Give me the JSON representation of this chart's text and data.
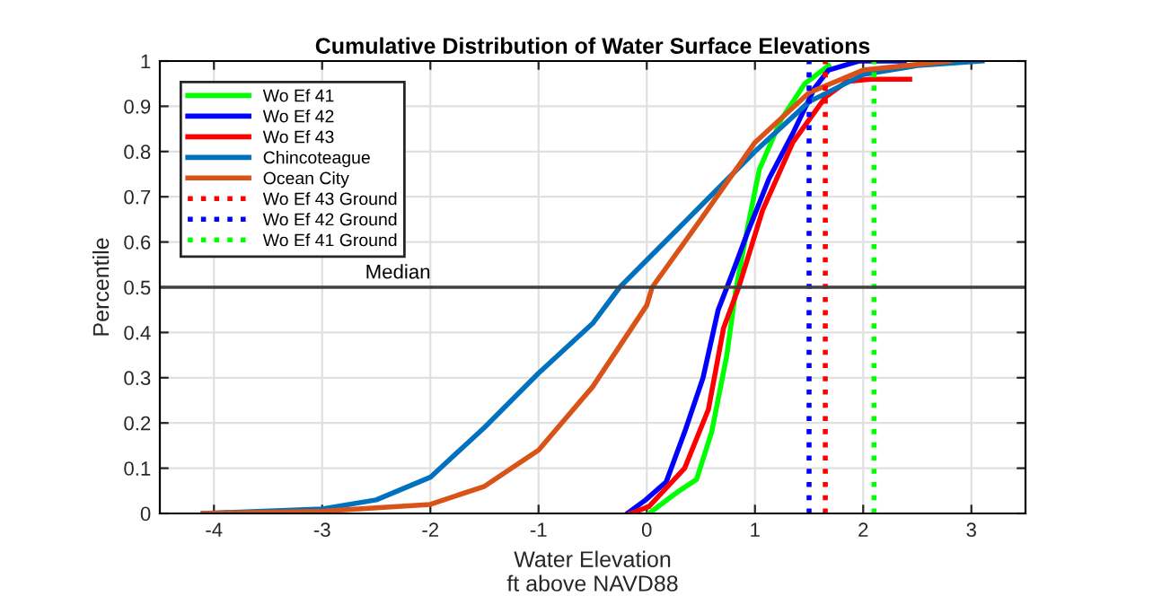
{
  "chart_data": {
    "type": "line",
    "title": "Cumulative Distribution of Water Surface Elevations",
    "xlabel": "Water Elevation\nft above NAVD88",
    "ylabel": "Percentile",
    "xlim": [
      -4.5,
      3.5
    ],
    "ylim": [
      0,
      1
    ],
    "xticks": [
      -4,
      -3,
      -2,
      -1,
      0,
      1,
      2,
      3
    ],
    "yticks": [
      0,
      0.1,
      0.2,
      0.3,
      0.4,
      0.5,
      0.6,
      0.7,
      0.8,
      0.9,
      1
    ],
    "grid": true,
    "legend": "top left",
    "line_style": "solid",
    "ref_lines": [
      {
        "axis": "y",
        "value": 0.5,
        "label": "Median",
        "color": "#404040"
      }
    ],
    "series": [
      {
        "name": "Wo Ef 41",
        "color": "#00ff00",
        "x": [
          0.02,
          0.3,
          0.46,
          0.6,
          0.74,
          0.82,
          0.93,
          1.04,
          1.24,
          1.46,
          1.68
        ],
        "values": [
          0,
          0.05,
          0.075,
          0.18,
          0.35,
          0.49,
          0.63,
          0.76,
          0.87,
          0.95,
          0.99
        ]
      },
      {
        "name": "Wo Ef 42",
        "color": "#0000ff",
        "x": [
          -0.18,
          -0.01,
          0.18,
          0.35,
          0.52,
          0.66,
          0.79,
          0.93,
          1.13,
          1.35,
          1.55,
          1.68,
          1.96,
          2.38
        ],
        "values": [
          0,
          0.03,
          0.07,
          0.18,
          0.3,
          0.45,
          0.53,
          0.62,
          0.74,
          0.84,
          0.94,
          0.98,
          1,
          1
        ]
      },
      {
        "name": "Wo Ef 43",
        "color": "#ff0000",
        "x": [
          -0.15,
          0.02,
          0.35,
          0.57,
          0.71,
          0.85,
          1.07,
          1.35,
          1.65,
          1.85,
          2.07,
          2.43
        ],
        "values": [
          0,
          0.015,
          0.1,
          0.23,
          0.41,
          0.5,
          0.67,
          0.82,
          0.92,
          0.955,
          0.96,
          0.96
        ]
      },
      {
        "name": "Chincoteague",
        "color": "#0072bd",
        "x": [
          -4.1,
          -3,
          -2.5,
          -2,
          -1.5,
          -1,
          -0.5,
          -0.25,
          0,
          0.5,
          1,
          1.5,
          2,
          2.5,
          3.1
        ],
        "values": [
          0,
          0.01,
          0.03,
          0.08,
          0.19,
          0.31,
          0.42,
          0.5,
          0.56,
          0.68,
          0.8,
          0.91,
          0.97,
          0.99,
          1
        ]
      },
      {
        "name": "Ocean City",
        "color": "#d95319",
        "x": [
          -4.1,
          -3,
          -2,
          -1.5,
          -1,
          -0.5,
          0,
          0.05,
          0.5,
          1,
          1.5,
          2,
          2.8
        ],
        "values": [
          0,
          0.005,
          0.02,
          0.06,
          0.14,
          0.28,
          0.46,
          0.5,
          0.65,
          0.82,
          0.93,
          0.98,
          1
        ]
      },
      {
        "name": "Wo Ef 43 Ground",
        "color": "#ff0000",
        "line_style": "dotted",
        "x": [
          1.65,
          1.65
        ],
        "values": [
          0,
          1
        ]
      },
      {
        "name": "Wo Ef 42 Ground",
        "color": "#0000ff",
        "line_style": "dotted",
        "x": [
          1.5,
          1.5
        ],
        "values": [
          0,
          1
        ]
      },
      {
        "name": "Wo Ef 41 Ground",
        "color": "#00ff00",
        "line_style": "dotted",
        "x": [
          2.1,
          2.1
        ],
        "values": [
          0,
          1
        ]
      }
    ]
  }
}
